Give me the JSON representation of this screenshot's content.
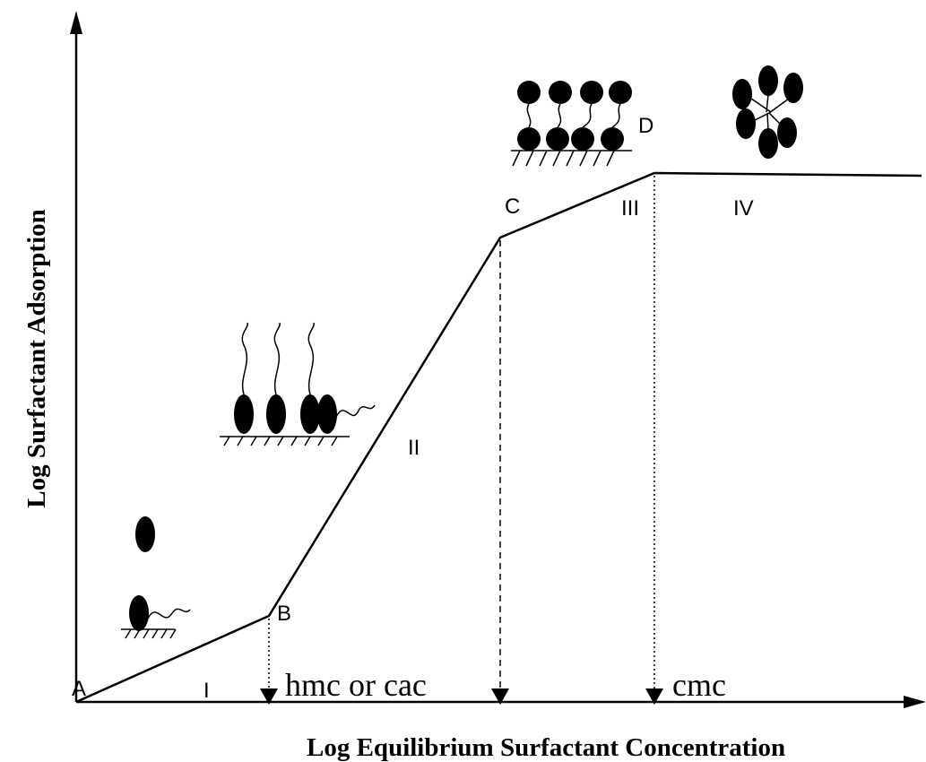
{
  "axes": {
    "y_label": "Log Surfactant Adsorption",
    "x_label": "Log  Equilibrium Surfactant Concentration"
  },
  "point_labels": [
    "A",
    "B",
    "C",
    "D"
  ],
  "region_labels": [
    "I",
    "II",
    "III",
    "IV"
  ],
  "markers": [
    "hmc or cac",
    "cmc"
  ]
}
